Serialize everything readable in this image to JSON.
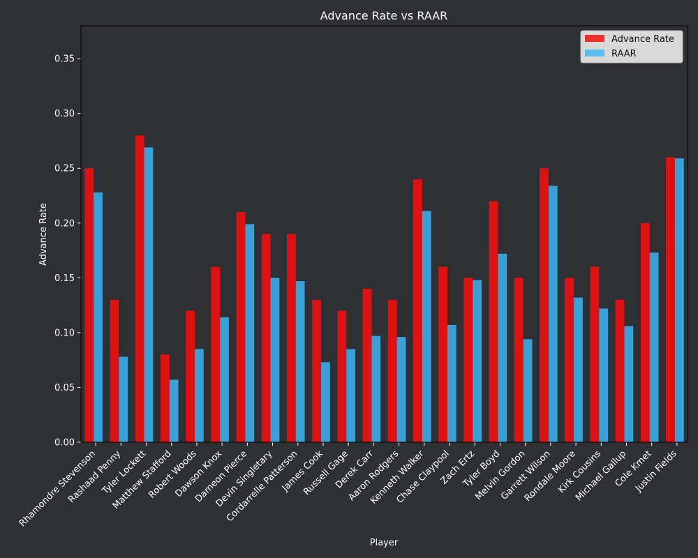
{
  "chart_data": {
    "type": "bar",
    "title": "Advance Rate vs RAAR",
    "xlabel": "Player",
    "ylabel": "Advance Rate",
    "ylim": [
      0,
      0.38
    ],
    "yticks": [
      "0.00",
      "0.05",
      "0.10",
      "0.15",
      "0.20",
      "0.25",
      "0.30",
      "0.35"
    ],
    "legend_position": "top-right",
    "categories": [
      "Rhamondre Stevenson",
      "Rashaad Penny",
      "Tyler Lockett",
      "Matthew Stafford",
      "Robert Woods",
      "Dawson Knox",
      "Dameon Pierce",
      "Devin Singletary",
      "Cordarrelle Patterson",
      "James Cook",
      "Russell Gage",
      "Derek Carr",
      "Aaron Rodgers",
      "Kenneth Walker",
      "Chase Claypool",
      "Zach Ertz",
      "Tyler Boyd",
      "Melvin Gordon",
      "Garrett Wilson",
      "Rondale Moore",
      "Kirk Cousins",
      "Michael Gallup",
      "Cole Kmet",
      "Justin Fields"
    ],
    "series": [
      {
        "name": "Advance Rate",
        "color": "#dd1111",
        "legend_color": "#f03030",
        "values": [
          0.25,
          0.13,
          0.28,
          0.08,
          0.12,
          0.16,
          0.21,
          0.19,
          0.19,
          0.13,
          0.12,
          0.14,
          0.13,
          0.24,
          0.16,
          0.15,
          0.22,
          0.15,
          0.25,
          0.15,
          0.16,
          0.13,
          0.2,
          0.26
        ]
      },
      {
        "name": "RAAR",
        "color": "#3aa0d8",
        "legend_color": "#5bbcf0",
        "values": [
          0.228,
          0.078,
          0.269,
          0.057,
          0.085,
          0.114,
          0.199,
          0.15,
          0.147,
          0.073,
          0.085,
          0.097,
          0.096,
          0.211,
          0.107,
          0.148,
          0.172,
          0.094,
          0.234,
          0.132,
          0.122,
          0.106,
          0.173,
          0.259
        ]
      }
    ]
  },
  "colors": {
    "background": "#2f3034",
    "axes_background": "#2f3034",
    "text": "#ffffff",
    "legend_background": "#d9d9d9"
  }
}
